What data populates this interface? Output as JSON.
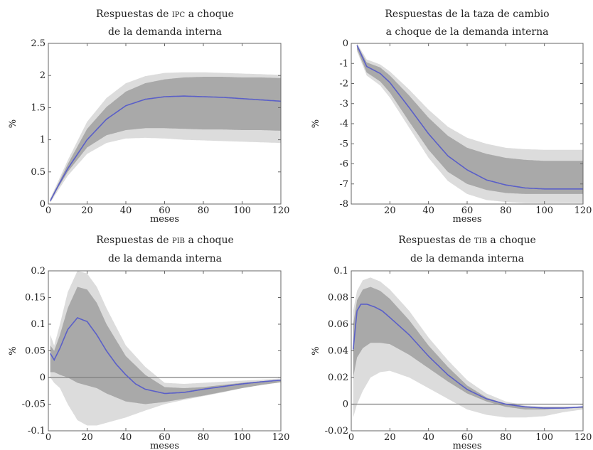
{
  "colors": {
    "outer_band": "#dcdcdc",
    "inner_band": "#a9a9a9",
    "median_line": "#5a5fc8",
    "zero_line": "#7f7f7f",
    "axes": "#666666"
  },
  "chart_data": [
    {
      "type": "line",
      "title": {
        "line1_pre": "Respuestas de ",
        "line1_sc": "IPC",
        "line1_post": " a choque",
        "line2": "de la demanda interna"
      },
      "xlabel": "meses",
      "ylabel": "%",
      "xlim": [
        0,
        120
      ],
      "ylim": [
        0,
        2.5
      ],
      "xticks": [
        0,
        20,
        40,
        60,
        80,
        100,
        120
      ],
      "yticks": [
        0,
        0.5,
        1,
        1.5,
        2,
        2.5
      ],
      "ytick_labels": [
        "0",
        "0.5",
        "1",
        "1.5",
        "2",
        "2.5"
      ],
      "zero_line": false,
      "grid": false,
      "bands": {
        "x": [
          1,
          5,
          10,
          20,
          30,
          40,
          50,
          60,
          70,
          80,
          90,
          100,
          110,
          120
        ],
        "outer_upper": [
          0.09,
          0.35,
          0.68,
          1.28,
          1.65,
          1.88,
          1.99,
          2.04,
          2.05,
          2.05,
          2.04,
          2.03,
          2.02,
          2.01
        ],
        "outer_lower": [
          0.02,
          0.21,
          0.44,
          0.78,
          0.95,
          1.02,
          1.03,
          1.02,
          1.0,
          0.99,
          0.98,
          0.97,
          0.96,
          0.95
        ],
        "inner_upper": [
          0.07,
          0.31,
          0.62,
          1.17,
          1.51,
          1.75,
          1.88,
          1.94,
          1.97,
          1.98,
          1.98,
          1.97,
          1.97,
          1.96
        ],
        "inner_lower": [
          0.03,
          0.25,
          0.5,
          0.88,
          1.07,
          1.15,
          1.18,
          1.18,
          1.17,
          1.16,
          1.16,
          1.15,
          1.15,
          1.14
        ]
      },
      "series": [
        {
          "x": [
            1,
            5,
            10,
            20,
            30,
            40,
            50,
            60,
            70,
            80,
            90,
            100,
            110,
            120
          ],
          "values": [
            0.05,
            0.28,
            0.55,
            1.0,
            1.32,
            1.53,
            1.63,
            1.67,
            1.68,
            1.67,
            1.66,
            1.64,
            1.62,
            1.6
          ]
        }
      ]
    },
    {
      "type": "line",
      "title": {
        "line1_pre": "Respuestas de la taza de cambio",
        "line1_sc": "",
        "line1_post": "",
        "line2": "a choque de la demanda interna"
      },
      "xlabel": "meses",
      "ylabel": "%",
      "xlim": [
        0,
        120
      ],
      "ylim": [
        -8,
        0
      ],
      "xticks": [
        20,
        40,
        60,
        80,
        100,
        120
      ],
      "yticks": [
        0,
        -1,
        -2,
        -3,
        -4,
        -5,
        -6,
        -7,
        -8
      ],
      "ytick_labels": [
        "0",
        "-1",
        "-2",
        "-3",
        "-4",
        "-5",
        "-6",
        "-7",
        "-8"
      ],
      "zero_line": false,
      "grid": false,
      "bands": {
        "x": [
          3,
          8,
          15,
          20,
          30,
          40,
          50,
          60,
          70,
          80,
          90,
          100,
          110,
          120
        ],
        "outer_upper": [
          0.0,
          -0.8,
          -1.05,
          -1.4,
          -2.3,
          -3.3,
          -4.15,
          -4.7,
          -5.0,
          -5.2,
          -5.27,
          -5.3,
          -5.3,
          -5.3
        ],
        "outer_lower": [
          -0.4,
          -1.6,
          -2.1,
          -2.7,
          -4.2,
          -5.7,
          -6.85,
          -7.5,
          -7.8,
          -7.9,
          -7.95,
          -7.95,
          -7.95,
          -7.95
        ],
        "inner_upper": [
          -0.05,
          -0.95,
          -1.2,
          -1.6,
          -2.6,
          -3.7,
          -4.6,
          -5.2,
          -5.5,
          -5.7,
          -5.8,
          -5.85,
          -5.85,
          -5.85
        ],
        "inner_lower": [
          -0.3,
          -1.45,
          -1.9,
          -2.45,
          -3.9,
          -5.3,
          -6.4,
          -7.0,
          -7.3,
          -7.45,
          -7.5,
          -7.5,
          -7.5,
          -7.5
        ]
      },
      "series": [
        {
          "x": [
            3,
            8,
            15,
            20,
            30,
            40,
            50,
            60,
            70,
            80,
            90,
            100,
            110,
            120
          ],
          "values": [
            -0.1,
            -1.15,
            -1.5,
            -1.95,
            -3.2,
            -4.5,
            -5.6,
            -6.3,
            -6.8,
            -7.05,
            -7.2,
            -7.25,
            -7.25,
            -7.25
          ]
        }
      ]
    },
    {
      "type": "line",
      "title": {
        "line1_pre": "Respuestas de ",
        "line1_sc": "PIB",
        "line1_post": " a choque",
        "line2": "de la demanda interna"
      },
      "xlabel": "meses",
      "ylabel": "%",
      "xlim": [
        0,
        120
      ],
      "ylim": [
        -0.1,
        0.2
      ],
      "xticks": [
        0,
        20,
        40,
        60,
        80,
        100,
        120
      ],
      "yticks": [
        -0.1,
        -0.05,
        0,
        0.05,
        0.1,
        0.15,
        0.2
      ],
      "ytick_labels": [
        "-0.1",
        "-0.05",
        "0",
        "0.05",
        "0.1",
        "0.15",
        "0.2"
      ],
      "zero_line": true,
      "grid": false,
      "bands": {
        "x": [
          1,
          3,
          6,
          10,
          15,
          20,
          25,
          30,
          40,
          50,
          60,
          70,
          80,
          90,
          100,
          110,
          120
        ],
        "outer_upper": [
          0.08,
          0.06,
          0.1,
          0.16,
          0.2,
          0.195,
          0.17,
          0.13,
          0.06,
          0.02,
          -0.01,
          -0.012,
          -0.01,
          -0.008,
          -0.006,
          -0.004,
          -0.002
        ],
        "outer_lower": [
          0.0,
          -0.01,
          -0.02,
          -0.05,
          -0.08,
          -0.09,
          -0.09,
          -0.085,
          -0.075,
          -0.062,
          -0.05,
          -0.042,
          -0.035,
          -0.028,
          -0.02,
          -0.013,
          -0.008
        ],
        "inner_upper": [
          0.06,
          0.05,
          0.08,
          0.13,
          0.17,
          0.165,
          0.14,
          0.1,
          0.04,
          0.005,
          -0.018,
          -0.02,
          -0.018,
          -0.014,
          -0.01,
          -0.007,
          -0.004
        ],
        "inner_lower": [
          0.01,
          0.01,
          0.005,
          0.0,
          -0.01,
          -0.015,
          -0.02,
          -0.03,
          -0.045,
          -0.05,
          -0.046,
          -0.04,
          -0.034,
          -0.027,
          -0.02,
          -0.014,
          -0.009
        ]
      },
      "series": [
        {
          "x": [
            1,
            3,
            6,
            10,
            15,
            20,
            25,
            30,
            35,
            40,
            45,
            50,
            60,
            70,
            80,
            90,
            100,
            110,
            120
          ],
          "values": [
            0.045,
            0.033,
            0.055,
            0.09,
            0.112,
            0.105,
            0.08,
            0.05,
            0.025,
            0.005,
            -0.012,
            -0.022,
            -0.03,
            -0.028,
            -0.022,
            -0.017,
            -0.012,
            -0.008,
            -0.005
          ]
        }
      ]
    },
    {
      "type": "line",
      "title": {
        "line1_pre": "Respuestas de ",
        "line1_sc": "TIB",
        "line1_post": " a choque",
        "line2": "de la demanda interna"
      },
      "xlabel": "meses",
      "ylabel": "%",
      "xlim": [
        0,
        120
      ],
      "ylim": [
        -0.02,
        0.1
      ],
      "xticks": [
        0,
        20,
        40,
        60,
        80,
        100,
        120
      ],
      "yticks": [
        -0.02,
        0,
        0.02,
        0.04,
        0.06,
        0.08,
        0.1
      ],
      "ytick_labels": [
        "-0.02",
        "0",
        "0.02",
        "0.04",
        "0.06",
        "0.08",
        "0.1"
      ],
      "zero_line": true,
      "grid": false,
      "bands": {
        "x": [
          1,
          3,
          6,
          10,
          15,
          20,
          30,
          40,
          50,
          60,
          70,
          80,
          90,
          100,
          110,
          120
        ],
        "outer_upper": [
          0.07,
          0.085,
          0.093,
          0.095,
          0.092,
          0.086,
          0.07,
          0.05,
          0.033,
          0.018,
          0.008,
          0.002,
          -0.001,
          -0.002,
          -0.002,
          -0.002
        ],
        "outer_lower": [
          -0.01,
          0.0,
          0.01,
          0.02,
          0.024,
          0.025,
          0.02,
          0.012,
          0.004,
          -0.004,
          -0.008,
          -0.01,
          -0.01,
          -0.009,
          -0.006,
          -0.004
        ],
        "inner_upper": [
          0.06,
          0.078,
          0.086,
          0.088,
          0.085,
          0.079,
          0.063,
          0.044,
          0.028,
          0.014,
          0.005,
          0.0,
          -0.002,
          -0.002,
          -0.002,
          -0.002
        ],
        "inner_lower": [
          0.02,
          0.035,
          0.042,
          0.046,
          0.046,
          0.045,
          0.037,
          0.027,
          0.017,
          0.008,
          0.002,
          -0.002,
          -0.004,
          -0.004,
          -0.003,
          -0.003
        ]
      },
      "series": [
        {
          "x": [
            1,
            3,
            5,
            8,
            12,
            16,
            20,
            30,
            40,
            50,
            60,
            70,
            80,
            90,
            100,
            110,
            120
          ],
          "values": [
            0.041,
            0.07,
            0.075,
            0.075,
            0.073,
            0.07,
            0.065,
            0.052,
            0.036,
            0.022,
            0.011,
            0.004,
            0.0,
            -0.002,
            -0.003,
            -0.003,
            -0.002
          ]
        }
      ]
    }
  ]
}
